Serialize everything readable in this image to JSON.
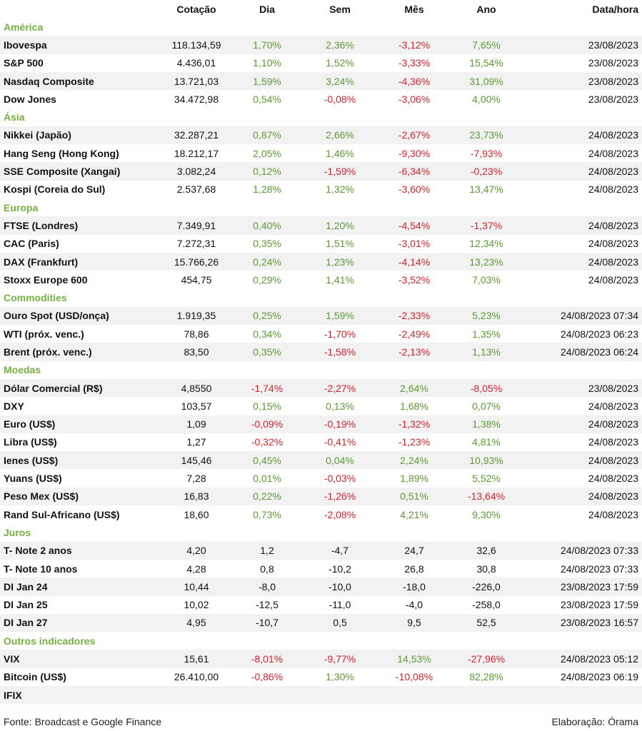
{
  "header": [
    "",
    "Cotação",
    "Dia",
    "Sem",
    "Mês",
    "Ano",
    "Data/hora"
  ],
  "sections": [
    {
      "title": "América",
      "rows": [
        {
          "name": "Ibovespa",
          "cot": "118.134,59",
          "dia": "1,70%",
          "sem": "2,36%",
          "mes": "-3,12%",
          "ano": "7,65%",
          "dt": "23/08/2023"
        },
        {
          "name": "S&P 500",
          "cot": "4.436,01",
          "dia": "1,10%",
          "sem": "1,52%",
          "mes": "-3,33%",
          "ano": "15,54%",
          "dt": "23/08/2023"
        },
        {
          "name": "Nasdaq Composite",
          "cot": "13.721,03",
          "dia": "1,59%",
          "sem": "3,24%",
          "mes": "-4,36%",
          "ano": "31,09%",
          "dt": "23/08/2023"
        },
        {
          "name": "Dow Jones",
          "cot": "34.472,98",
          "dia": "0,54%",
          "sem": "-0,08%",
          "mes": "-3,06%",
          "ano": "4,00%",
          "dt": "23/08/2023"
        }
      ]
    },
    {
      "title": "Ásia",
      "rows": [
        {
          "name": "Nikkei (Japão)",
          "cot": "32.287,21",
          "dia": "0,87%",
          "sem": "2,66%",
          "mes": "-2,67%",
          "ano": "23,73%",
          "dt": "24/08/2023"
        },
        {
          "name": "Hang Seng (Hong Kong)",
          "cot": "18.212,17",
          "dia": "2,05%",
          "sem": "1,46%",
          "mes": "-9,30%",
          "ano": "-7,93%",
          "dt": "24/08/2023"
        },
        {
          "name": "SSE Composite (Xangai)",
          "cot": "3.082,24",
          "dia": "0,12%",
          "sem": "-1,59%",
          "mes": "-6,34%",
          "ano": "-0,23%",
          "dt": "24/08/2023"
        },
        {
          "name": "Kospi (Coreia do Sul)",
          "cot": "2.537,68",
          "dia": "1,28%",
          "sem": "1,32%",
          "mes": "-3,60%",
          "ano": "13,47%",
          "dt": "24/08/2023"
        }
      ]
    },
    {
      "title": "Europa",
      "rows": [
        {
          "name": "FTSE (Londres)",
          "cot": "7.349,91",
          "dia": "0,40%",
          "sem": "1,20%",
          "mes": "-4,54%",
          "ano": "-1,37%",
          "dt": "24/08/2023"
        },
        {
          "name": "CAC (Paris)",
          "cot": "7.272,31",
          "dia": "0,35%",
          "sem": "1,51%",
          "mes": "-3,01%",
          "ano": "12,34%",
          "dt": "24/08/2023"
        },
        {
          "name": "DAX (Frankfurt)",
          "cot": "15.766,26",
          "dia": "0,24%",
          "sem": "1,23%",
          "mes": "-4,14%",
          "ano": "13,23%",
          "dt": "24/08/2023"
        },
        {
          "name": "Stoxx Europe 600",
          "cot": "454,75",
          "dia": "0,29%",
          "sem": "1,41%",
          "mes": "-3,52%",
          "ano": "7,03%",
          "dt": "24/08/2023"
        }
      ]
    },
    {
      "title": "Commodities",
      "rows": [
        {
          "name": "Ouro Spot (USD/onça)",
          "cot": "1.919,35",
          "dia": "0,25%",
          "sem": "1,59%",
          "mes": "-2,33%",
          "ano": "5,23%",
          "dt": "24/08/2023 07:34"
        },
        {
          "name": "WTI (próx. venc.)",
          "cot": "78,86",
          "dia": "0,34%",
          "sem": "-1,70%",
          "mes": "-2,49%",
          "ano": "1,35%",
          "dt": "24/08/2023 06:23"
        },
        {
          "name": "Brent (próx. venc.)",
          "cot": "83,50",
          "dia": "0,35%",
          "sem": "-1,58%",
          "mes": "-2,13%",
          "ano": "1,13%",
          "dt": "24/08/2023 06:24"
        }
      ]
    },
    {
      "title": "Moedas",
      "rows": [
        {
          "name": "Dólar Comercial (R$)",
          "cot": "4,8550",
          "dia": "-1,74%",
          "sem": "-2,27%",
          "mes": "2,64%",
          "ano": "-8,05%",
          "dt": "23/08/2023"
        },
        {
          "name": "DXY",
          "cot": "103,57",
          "dia": "0,15%",
          "sem": "0,13%",
          "mes": "1,68%",
          "ano": "0,07%",
          "dt": "24/08/2023"
        },
        {
          "name": "Euro (US$)",
          "cot": "1,09",
          "dia": "-0,09%",
          "sem": "-0,19%",
          "mes": "-1,32%",
          "ano": "1,38%",
          "dt": "24/08/2023"
        },
        {
          "name": "Libra (US$)",
          "cot": "1,27",
          "dia": "-0,32%",
          "sem": "-0,41%",
          "mes": "-1,23%",
          "ano": "4,81%",
          "dt": "24/08/2023"
        },
        {
          "name": "Ienes (US$)",
          "cot": "145,46",
          "dia": "0,45%",
          "sem": "0,04%",
          "mes": "2,24%",
          "ano": "10,93%",
          "dt": "24/08/2023"
        },
        {
          "name": "Yuans (US$)",
          "cot": "7,28",
          "dia": "0,01%",
          "sem": "-0,03%",
          "mes": "1,89%",
          "ano": "5,52%",
          "dt": "24/08/2023"
        },
        {
          "name": "Peso Mex (US$)",
          "cot": "16,83",
          "dia": "0,22%",
          "sem": "-1,26%",
          "mes": "0,51%",
          "ano": "-13,64%",
          "dt": "24/08/2023"
        },
        {
          "name": "Rand Sul-Africano (US$)",
          "cot": "18,60",
          "dia": "0,73%",
          "sem": "-2,08%",
          "mes": "4,21%",
          "ano": "9,30%",
          "dt": "24/08/2023"
        }
      ]
    },
    {
      "title": "Juros",
      "plain": true,
      "rows": [
        {
          "name": "T- Note 2 anos",
          "cot": "4,20",
          "dia": "1,2",
          "sem": "-4,7",
          "mes": "24,7",
          "ano": "32,6",
          "dt": "24/08/2023 07:33"
        },
        {
          "name": "T- Note 10 anos",
          "cot": "4,28",
          "dia": "0,8",
          "sem": "-10,2",
          "mes": "26,8",
          "ano": "30,8",
          "dt": "24/08/2023 07:33"
        },
        {
          "name": "DI Jan 24",
          "cot": "10,44",
          "dia": "-8,0",
          "sem": "-10,0",
          "mes": "-18,0",
          "ano": "-226,0",
          "dt": "23/08/2023 17:59"
        },
        {
          "name": "DI Jan 25",
          "cot": "10,02",
          "dia": "-12,5",
          "sem": "-11,0",
          "mes": "-4,0",
          "ano": "-258,0",
          "dt": "23/08/2023 17:59"
        },
        {
          "name": "DI Jan 27",
          "cot": "4,95",
          "dia": "-10,7",
          "sem": "0,5",
          "mes": "9,5",
          "ano": "52,5",
          "dt": "23/08/2023 16:57"
        }
      ]
    },
    {
      "title": "Outros indicadores",
      "rows": [
        {
          "name": "VIX",
          "cot": "15,61",
          "dia": "-8,01%",
          "sem": "-9,77%",
          "mes": "14,53%",
          "ano": "-27,96%",
          "dt": "24/08/2023 05:12"
        },
        {
          "name": "Bitcoin (US$)",
          "cot": "26.410,00",
          "dia": "-0,86%",
          "sem": "1,30%",
          "mes": "-10,08%",
          "ano": "82,28%",
          "dt": "24/08/2023 06:19"
        },
        {
          "name": "IFIX",
          "cot": "",
          "dia": "",
          "sem": "",
          "mes": "",
          "ano": "",
          "dt": ""
        }
      ]
    }
  ],
  "footer": {
    "source": "Fonte: Broadcast e Google Finance",
    "credit": "Elaboração: Órama"
  },
  "colors": {
    "positive": "#5a9a32",
    "negative": "#d2232a",
    "section": "#76b041",
    "shade": "#f2f2f2"
  }
}
